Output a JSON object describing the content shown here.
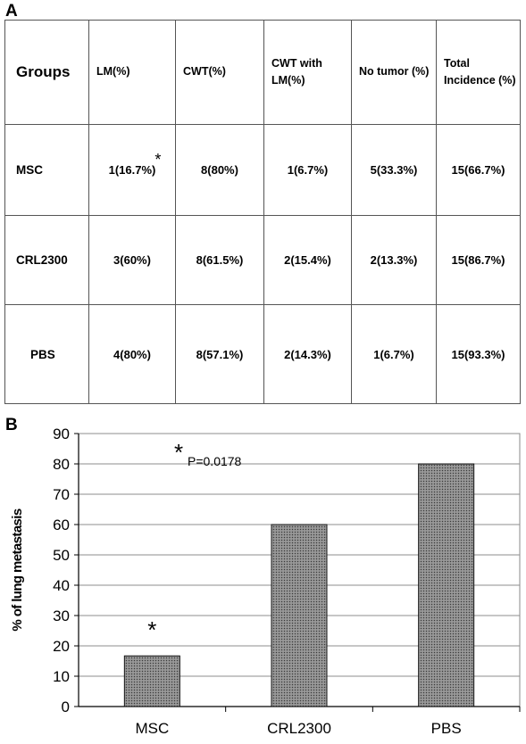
{
  "panels": {
    "a": "A",
    "b": "B"
  },
  "table": {
    "headers": [
      "Groups",
      "LM(%)",
      "CWT(%)",
      "CWT with LM(%)",
      "No tumor (%)",
      "Total Incidence (%)"
    ],
    "rows": [
      {
        "group": "MSC",
        "cells": [
          "1(16.7%)",
          "8(80%)",
          "1(6.7%)",
          "5(33.3%)",
          "15(66.7%)"
        ],
        "marker": "*"
      },
      {
        "group": "CRL2300",
        "cells": [
          "3(60%)",
          "8(61.5%)",
          "2(15.4%)",
          "2(13.3%)",
          "15(86.7%)"
        ]
      },
      {
        "group": "PBS",
        "cells": [
          "4(80%)",
          "8(57.1%)",
          "2(14.3%)",
          "1(6.7%)",
          "15(93.3%)"
        ]
      }
    ]
  },
  "chart_data": {
    "type": "bar",
    "title": "",
    "xlabel": "",
    "ylabel": "% of lung metastasis",
    "categories": [
      "MSC",
      "CRL2300",
      "PBS"
    ],
    "values": [
      16.7,
      60,
      80
    ],
    "ylim": [
      0,
      90
    ],
    "yticks": [
      0,
      10,
      20,
      30,
      40,
      50,
      60,
      70,
      80,
      90
    ],
    "grid": true,
    "bar_fill": "#7f7f7f",
    "annotations": [
      {
        "text": "*",
        "target": "MSC"
      },
      {
        "star": "*",
        "text": "P=0.0178"
      }
    ]
  }
}
